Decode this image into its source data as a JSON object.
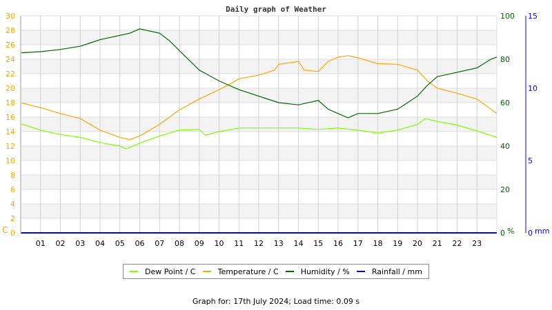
{
  "chart_data": {
    "type": "line",
    "title": "Daily graph of Weather",
    "x_ticks": [
      "01",
      "02",
      "03",
      "04",
      "05",
      "06",
      "07",
      "08",
      "09",
      "10",
      "11",
      "12",
      "13",
      "14",
      "15",
      "16",
      "17",
      "18",
      "19",
      "20",
      "21",
      "22",
      "23"
    ],
    "xlim": [
      0,
      24
    ],
    "axes": {
      "temp": {
        "label": "C",
        "ylim": [
          0,
          30
        ],
        "ticks": [
          0,
          2,
          4,
          6,
          8,
          10,
          12,
          14,
          16,
          18,
          20,
          22,
          24,
          26,
          28,
          30
        ],
        "color": "#ffa500"
      },
      "humidity": {
        "label": "%",
        "ylim": [
          0,
          100
        ],
        "ticks": [
          0,
          20,
          40,
          60,
          80,
          100
        ],
        "color": "#006400"
      },
      "rain": {
        "label": "mm",
        "ylim": [
          0,
          15
        ],
        "ticks": [
          0,
          5,
          10,
          15
        ],
        "color": "#0000ff"
      }
    },
    "grid": true,
    "legend_position": "bottom",
    "series": [
      {
        "name": "Dew Point / C",
        "axis": "temp",
        "color": "#80ff00",
        "x": [
          0,
          1,
          2,
          3,
          4,
          5,
          5.3,
          6,
          7,
          8,
          9,
          9.3,
          10,
          11,
          12,
          13,
          14,
          15,
          16,
          17,
          18,
          19,
          20,
          20.4,
          21,
          22,
          23,
          24
        ],
        "y": [
          15.1,
          14.2,
          13.6,
          13.2,
          12.5,
          12,
          11.6,
          12.4,
          13.4,
          14.2,
          14.3,
          13.5,
          14,
          14.5,
          14.5,
          14.5,
          14.5,
          14.3,
          14.5,
          14.2,
          13.8,
          14.2,
          15,
          15.8,
          15.4,
          14.9,
          14.1,
          13.2
        ]
      },
      {
        "name": "Temperature / C",
        "axis": "temp",
        "color": "#ffa500",
        "x": [
          0,
          1,
          2,
          3,
          4,
          5,
          5.5,
          6,
          7,
          8,
          9,
          10,
          10.5,
          11,
          12,
          12.8,
          13,
          14,
          14.3,
          15,
          15.5,
          16,
          16.5,
          17,
          18,
          19,
          20,
          20.5,
          21,
          22,
          23,
          24
        ],
        "y": [
          18,
          17.3,
          16.5,
          15.8,
          14.2,
          13.2,
          12.9,
          13.4,
          15,
          17,
          18.5,
          19.8,
          20.5,
          21.3,
          21.8,
          22.5,
          23.3,
          23.7,
          22.5,
          22.3,
          23.7,
          24.3,
          24.5,
          24.2,
          23.4,
          23.3,
          22.5,
          21,
          20,
          19.3,
          18.5,
          16.5
        ]
      },
      {
        "name": "Humidity / %",
        "axis": "humidity",
        "color": "#006400",
        "x": [
          0,
          1,
          2,
          3,
          4,
          5,
          5.5,
          6,
          7,
          7.5,
          8,
          9,
          10,
          11,
          12,
          13,
          14,
          15,
          15.5,
          16,
          16.5,
          17,
          18,
          19,
          20,
          20.5,
          21,
          22,
          23,
          23.7,
          24
        ],
        "y": [
          83,
          83.5,
          84.5,
          86,
          89,
          91,
          92,
          94,
          92,
          88.5,
          84,
          75,
          70,
          66,
          63,
          60,
          59,
          61,
          57,
          55,
          53,
          55,
          55,
          57,
          63,
          68,
          72,
          74,
          76,
          80,
          81
        ]
      },
      {
        "name": "Rainfall / mm",
        "axis": "rain",
        "color": "#0000ff",
        "x": [
          0,
          24
        ],
        "y": [
          0,
          0
        ]
      }
    ]
  },
  "footer": "Graph for: 17th July 2024; Load time: 0.09 s"
}
